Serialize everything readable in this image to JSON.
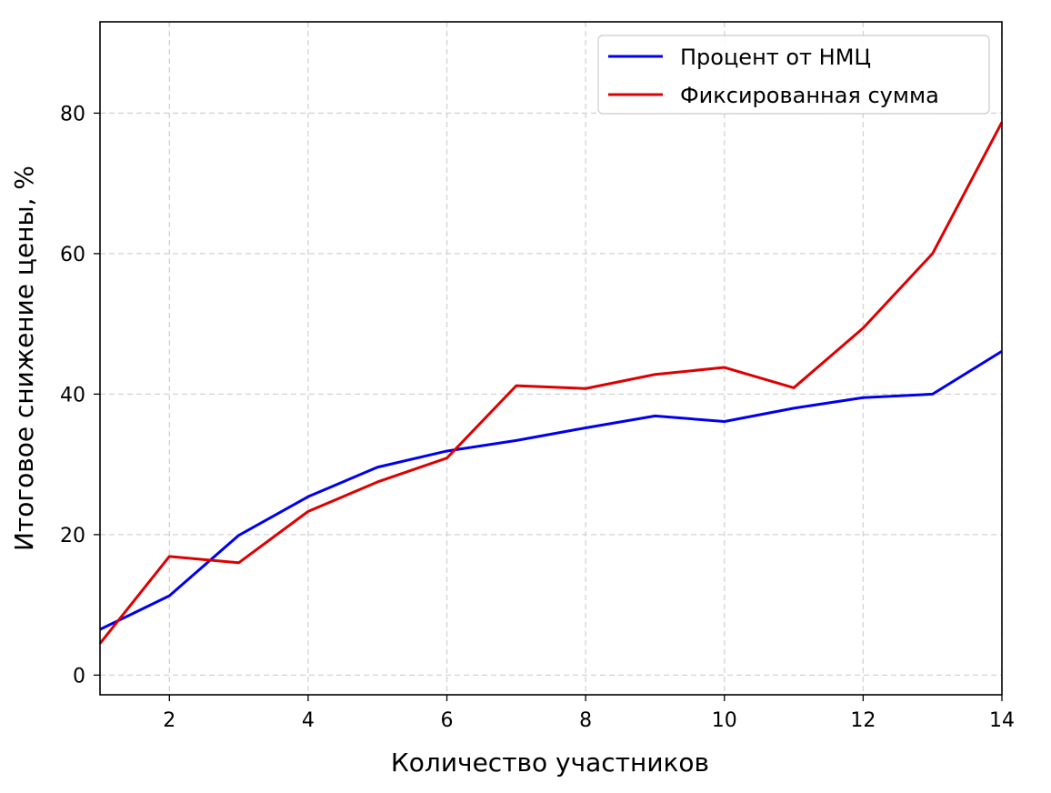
{
  "chart_data": {
    "type": "line",
    "title": "",
    "xlabel": "Количество участников",
    "ylabel": "Итоговое снижение цены, %",
    "xlim": [
      1,
      14
    ],
    "ylim": [
      -2.8,
      93
    ],
    "x_ticks": [
      2,
      4,
      6,
      8,
      10,
      12,
      14
    ],
    "y_ticks": [
      0,
      20,
      40,
      60,
      80
    ],
    "grid": true,
    "legend_position": "top-right",
    "x": [
      1,
      2,
      3,
      4,
      5,
      6,
      7,
      8,
      9,
      10,
      11,
      12,
      13,
      14
    ],
    "series": [
      {
        "name": "Процент от НМЦ",
        "color": "#0000ee",
        "values": [
          6.5,
          11.3,
          19.9,
          25.4,
          29.6,
          31.9,
          33.4,
          35.2,
          36.9,
          36.1,
          38.0,
          39.5,
          40.0,
          46.1
        ]
      },
      {
        "name": "Фиксированная сумма",
        "color": "#dd0000",
        "values": [
          4.5,
          16.9,
          16.0,
          23.3,
          27.5,
          30.9,
          41.2,
          40.8,
          42.8,
          43.8,
          40.9,
          49.4,
          60.0,
          78.7
        ]
      }
    ]
  }
}
